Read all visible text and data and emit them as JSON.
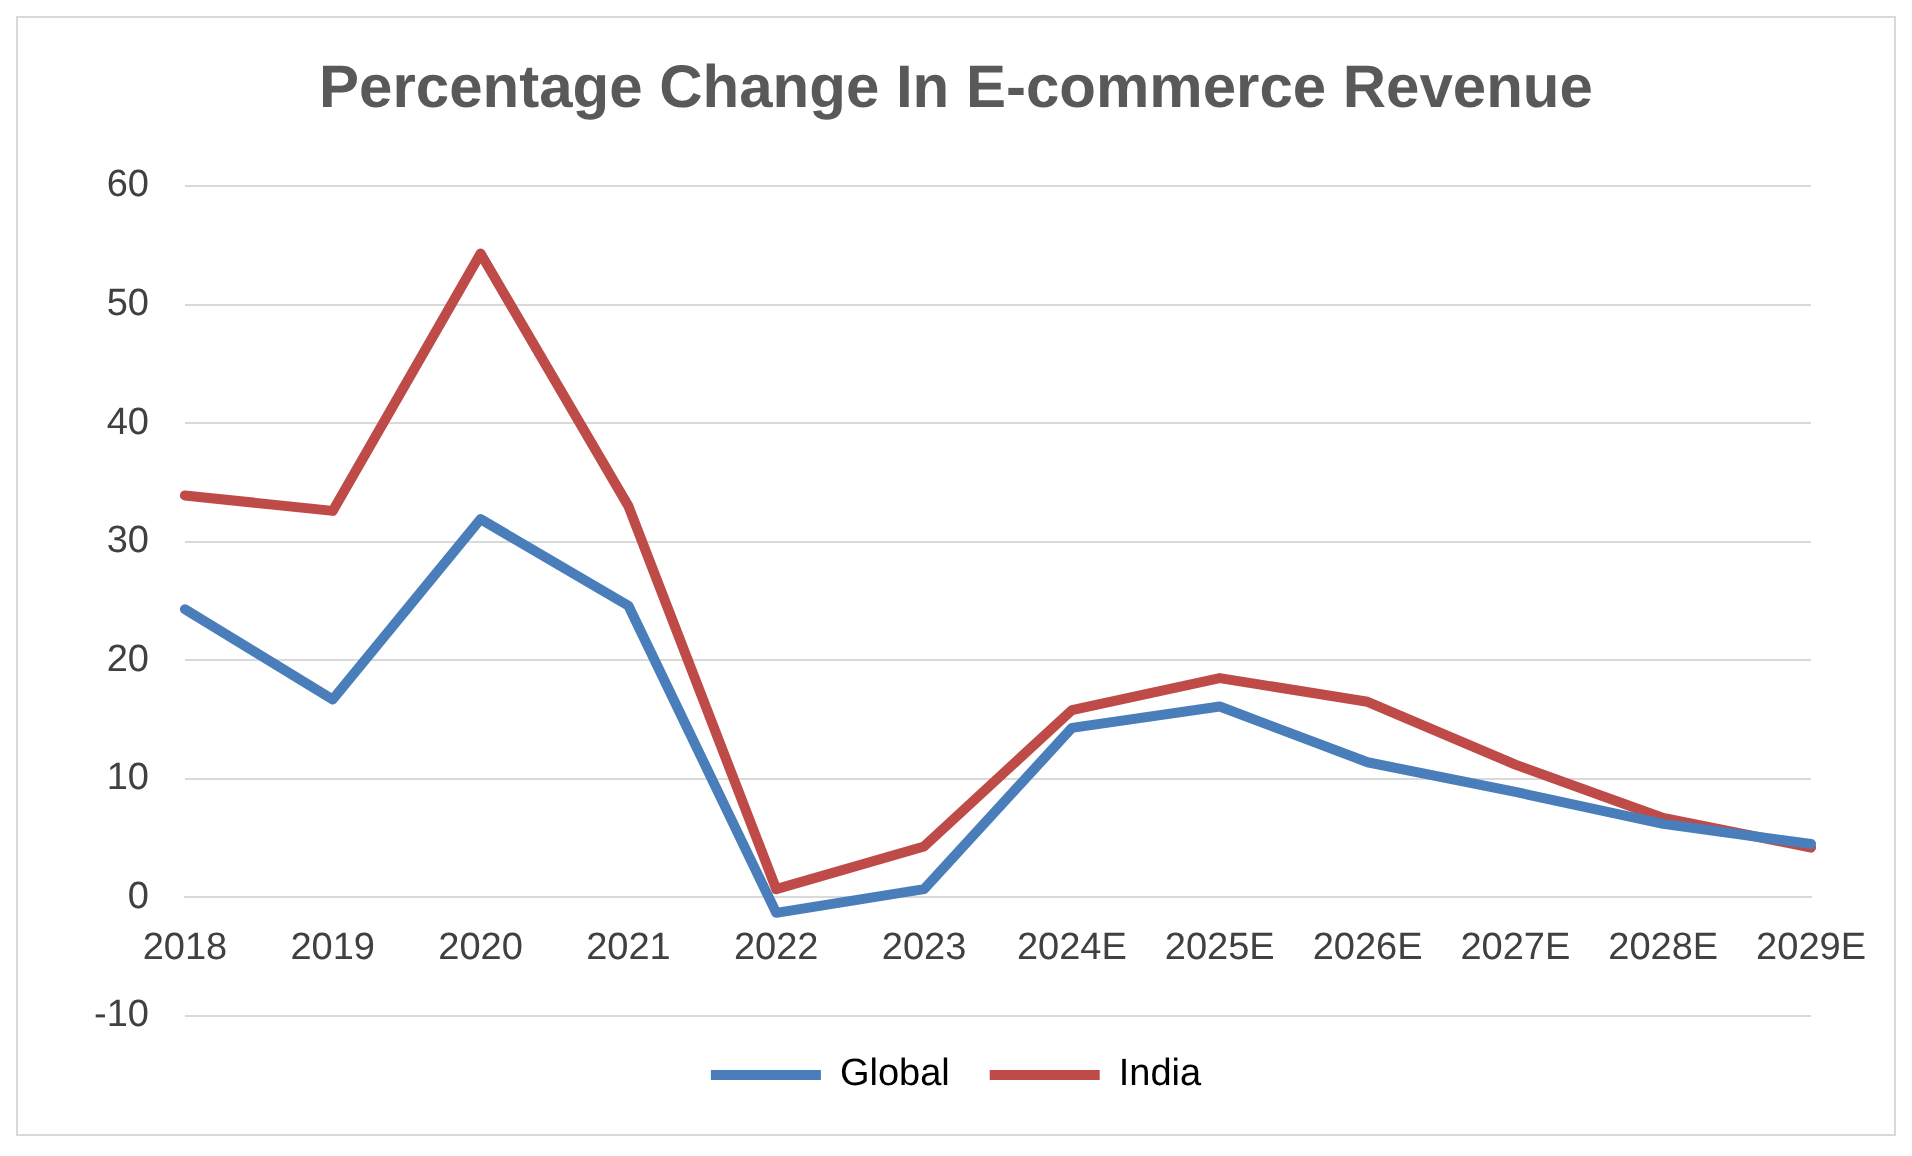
{
  "chart_data": {
    "type": "line",
    "title": "Percentage Change In E-commerce Revenue",
    "categories": [
      "2018",
      "2019",
      "2020",
      "2021",
      "2022",
      "2023",
      "2024E",
      "2025E",
      "2026E",
      "2027E",
      "2028E",
      "2029E"
    ],
    "series": [
      {
        "name": "Global",
        "color": "#4a7ebb",
        "values": [
          24.3,
          16.7,
          31.9,
          24.6,
          -1.3,
          0.7,
          14.3,
          16.1,
          11.4,
          8.9,
          6.2,
          4.5
        ]
      },
      {
        "name": "India",
        "color": "#be4b48",
        "values": [
          33.9,
          32.6,
          54.3,
          33,
          0.7,
          4.3,
          15.8,
          18.5,
          16.5,
          11.2,
          6.7,
          4.2
        ]
      }
    ],
    "ylim": [
      -10,
      60
    ],
    "yticks": [
      -10,
      0,
      10,
      20,
      30,
      40,
      50,
      60
    ],
    "grid": "y",
    "legend": "bottom",
    "marker": "none",
    "line_style": "solid"
  }
}
